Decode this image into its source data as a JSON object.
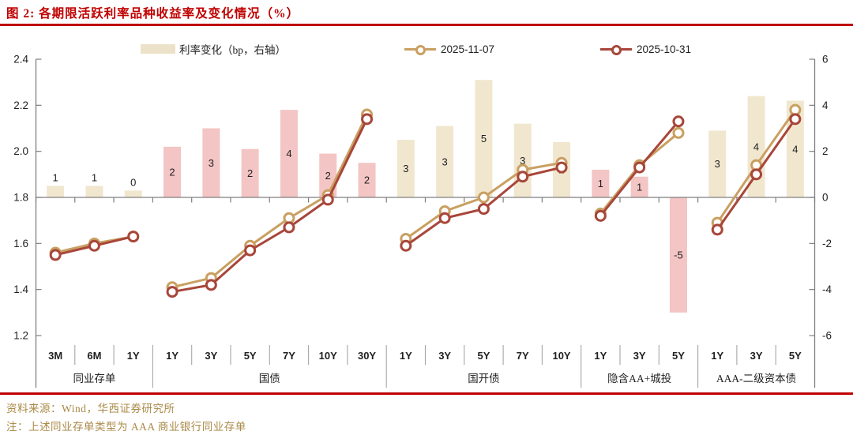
{
  "title": "图 2:  各期限活跃利率品种收益率及变化情况（%）",
  "legend": {
    "bar_label": "利率变化（bp，右轴）",
    "line_new_label": "2025-11-07",
    "line_old_label": "2025-10-31"
  },
  "footer": {
    "source": "资料来源：Wind，华西证券研究所",
    "note": "注：上述同业存单类型为 AAA 商业银行同业存单"
  },
  "colors": {
    "title_red": "#c00000",
    "rule_red": "#c00000",
    "bar_beige": "#f1e7cf",
    "bar_pink": "#f3c5c4",
    "line_new": "#c9a062",
    "line_old": "#a8463a",
    "axis_gray": "#7f7f7f",
    "separator_gray": "#a6a6a6",
    "text_dark": "#1f1f1f",
    "footer_tan": "#aa8a48"
  },
  "chart_data": {
    "type": "bar+line combo",
    "title": "各期限活跃利率品种收益率及变化情况（%）",
    "left_axis": {
      "min": 1.2,
      "max": 2.4,
      "ticks": [
        2.4,
        2.2,
        2.0,
        1.8,
        1.6,
        1.4,
        1.2
      ],
      "tick_labels": [
        "2.4",
        "2.2",
        "2.0",
        "1.8",
        "1.6",
        "1.4",
        "1.2"
      ]
    },
    "right_axis": {
      "min": -6,
      "max": 6,
      "ticks": [
        6,
        4,
        2,
        0,
        -2,
        -4,
        -6
      ],
      "tick_labels": [
        "6",
        "4",
        "2",
        "0",
        "-2",
        "-4",
        "-6"
      ],
      "unit": "bp"
    },
    "series_names": {
      "bars": "利率变化（bp，右轴）",
      "line_new": "2025-11-07",
      "line_old": "2025-10-31"
    },
    "groups": [
      {
        "name": "同业存单",
        "bar_style": "beige",
        "items": [
          {
            "tenor": "3M",
            "y_new": 1.56,
            "y_old": 1.55,
            "chg": 0.5,
            "chg_label": "1"
          },
          {
            "tenor": "6M",
            "y_new": 1.6,
            "y_old": 1.59,
            "chg": 0.5,
            "chg_label": "1"
          },
          {
            "tenor": "1Y",
            "y_new": 1.63,
            "y_old": 1.63,
            "chg": 0.3,
            "chg_label": "0"
          }
        ]
      },
      {
        "name": "国债",
        "bar_style": "pink",
        "items": [
          {
            "tenor": "1Y",
            "y_new": 1.41,
            "y_old": 1.39,
            "chg": 2.2,
            "chg_label": "2"
          },
          {
            "tenor": "3Y",
            "y_new": 1.45,
            "y_old": 1.42,
            "chg": 3.0,
            "chg_label": "3"
          },
          {
            "tenor": "5Y",
            "y_new": 1.59,
            "y_old": 1.57,
            "chg": 2.1,
            "chg_label": "2"
          },
          {
            "tenor": "7Y",
            "y_new": 1.71,
            "y_old": 1.67,
            "chg": 3.8,
            "chg_label": "4"
          },
          {
            "tenor": "10Y",
            "y_new": 1.81,
            "y_old": 1.79,
            "chg": 1.9,
            "chg_label": "2"
          },
          {
            "tenor": "30Y",
            "y_new": 2.16,
            "y_old": 2.14,
            "chg": 1.5,
            "chg_label": "2"
          }
        ]
      },
      {
        "name": "国开债",
        "bar_style": "beige",
        "items": [
          {
            "tenor": "1Y",
            "y_new": 1.62,
            "y_old": 1.59,
            "chg": 2.5,
            "chg_label": "3"
          },
          {
            "tenor": "3Y",
            "y_new": 1.74,
            "y_old": 1.71,
            "chg": 3.1,
            "chg_label": "3"
          },
          {
            "tenor": "5Y",
            "y_new": 1.8,
            "y_old": 1.75,
            "chg": 5.1,
            "chg_label": "5"
          },
          {
            "tenor": "7Y",
            "y_new": 1.92,
            "y_old": 1.89,
            "chg": 3.2,
            "chg_label": "3"
          },
          {
            "tenor": "10Y",
            "y_new": 1.95,
            "y_old": 1.93,
            "chg": 2.4,
            "chg_label": "2"
          }
        ]
      },
      {
        "name": "隐含AA+城投",
        "bar_style": "pink",
        "items": [
          {
            "tenor": "1Y",
            "y_new": 1.73,
            "y_old": 1.72,
            "chg": 1.2,
            "chg_label": "1"
          },
          {
            "tenor": "3Y",
            "y_new": 1.94,
            "y_old": 1.93,
            "chg": 0.9,
            "chg_label": "1"
          },
          {
            "tenor": "5Y",
            "y_new": 2.08,
            "y_old": 2.13,
            "chg": -5.0,
            "chg_label": "-5"
          }
        ]
      },
      {
        "name": "AAA-二级资本债",
        "bar_style": "beige",
        "items": [
          {
            "tenor": "1Y",
            "y_new": 1.69,
            "y_old": 1.66,
            "chg": 2.9,
            "chg_label": "3"
          },
          {
            "tenor": "3Y",
            "y_new": 1.94,
            "y_old": 1.9,
            "chg": 4.4,
            "chg_label": "4"
          },
          {
            "tenor": "5Y",
            "y_new": 2.18,
            "y_old": 2.14,
            "chg": 4.2,
            "chg_label": "4"
          }
        ]
      }
    ]
  }
}
